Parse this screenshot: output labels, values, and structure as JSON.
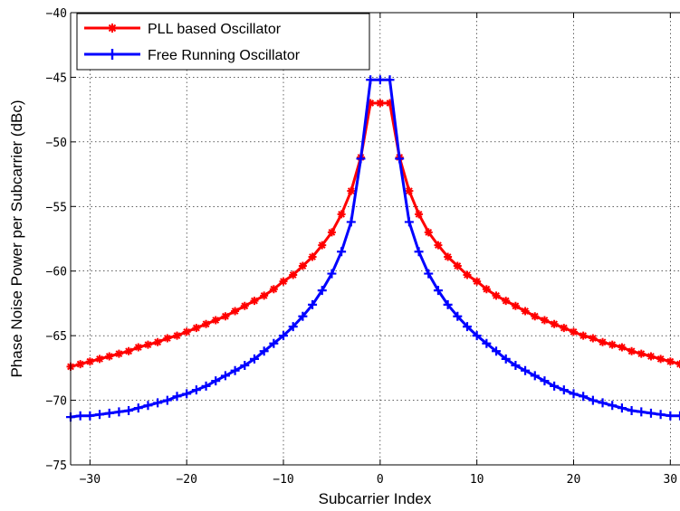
{
  "chart_data": {
    "type": "line",
    "xlabel": "Subcarrier Index",
    "ylabel": "Phase Noise Power per Subcarrier (dBc)",
    "xlim": [
      -32,
      31
    ],
    "ylim": [
      -75,
      -40
    ],
    "x_ticks": [
      -30,
      -20,
      -10,
      0,
      10,
      20,
      30
    ],
    "y_ticks": [
      -75,
      -70,
      -65,
      -60,
      -55,
      -50,
      -45,
      -40
    ],
    "x_tick_labels": [
      "−30",
      "−20",
      "−10",
      "0",
      "10",
      "20",
      "30"
    ],
    "y_tick_labels": [
      "−75",
      "−70",
      "−65",
      "−60",
      "−55",
      "−50",
      "−45",
      "−40"
    ],
    "grid": true,
    "legend_position": "top-left",
    "x": [
      -32,
      -31,
      -30,
      -29,
      -28,
      -27,
      -26,
      -25,
      -24,
      -23,
      -22,
      -21,
      -20,
      -19,
      -18,
      -17,
      -16,
      -15,
      -14,
      -13,
      -12,
      -11,
      -10,
      -9,
      -8,
      -7,
      -6,
      -5,
      -4,
      -3,
      -2,
      -1,
      0,
      1,
      2,
      3,
      4,
      5,
      6,
      7,
      8,
      9,
      10,
      11,
      12,
      13,
      14,
      15,
      16,
      17,
      18,
      19,
      20,
      21,
      22,
      23,
      24,
      25,
      26,
      27,
      28,
      29,
      30,
      31
    ],
    "series": [
      {
        "name": "PLL based Oscillator",
        "color": "#ff0000",
        "marker": "star",
        "values": [
          -67.4,
          -67.2,
          -67.0,
          -66.8,
          -66.6,
          -66.4,
          -66.2,
          -65.9,
          -65.7,
          -65.5,
          -65.2,
          -65.0,
          -64.7,
          -64.4,
          -64.1,
          -63.8,
          -63.5,
          -63.1,
          -62.7,
          -62.3,
          -61.9,
          -61.4,
          -60.8,
          -60.3,
          -59.6,
          -58.9,
          -58.0,
          -57.0,
          -55.6,
          -53.8,
          -51.2,
          -47.0,
          -47.0,
          -47.0,
          -51.2,
          -53.8,
          -55.6,
          -57.0,
          -58.0,
          -58.9,
          -59.6,
          -60.3,
          -60.8,
          -61.4,
          -61.9,
          -62.3,
          -62.7,
          -63.1,
          -63.5,
          -63.8,
          -64.1,
          -64.4,
          -64.7,
          -65.0,
          -65.2,
          -65.5,
          -65.7,
          -65.9,
          -66.2,
          -66.4,
          -66.6,
          -66.8,
          -67.0,
          -67.2
        ]
      },
      {
        "name": "Free Running Oscillator",
        "color": "#0000ff",
        "marker": "plus",
        "values": [
          -71.3,
          -71.2,
          -71.2,
          -71.1,
          -71.0,
          -70.9,
          -70.8,
          -70.6,
          -70.4,
          -70.2,
          -70.0,
          -69.7,
          -69.5,
          -69.2,
          -68.9,
          -68.5,
          -68.1,
          -67.7,
          -67.3,
          -66.8,
          -66.2,
          -65.6,
          -65.0,
          -64.3,
          -63.5,
          -62.6,
          -61.5,
          -60.2,
          -58.5,
          -56.2,
          -51.3,
          -45.2,
          -45.2,
          -45.2,
          -51.3,
          -56.2,
          -58.5,
          -60.2,
          -61.5,
          -62.6,
          -63.5,
          -64.3,
          -65.0,
          -65.6,
          -66.2,
          -66.8,
          -67.3,
          -67.7,
          -68.1,
          -68.5,
          -68.9,
          -69.2,
          -69.5,
          -69.7,
          -70.0,
          -70.2,
          -70.4,
          -70.6,
          -70.8,
          -70.9,
          -71.0,
          -71.1,
          -71.2,
          -71.2
        ]
      }
    ]
  }
}
